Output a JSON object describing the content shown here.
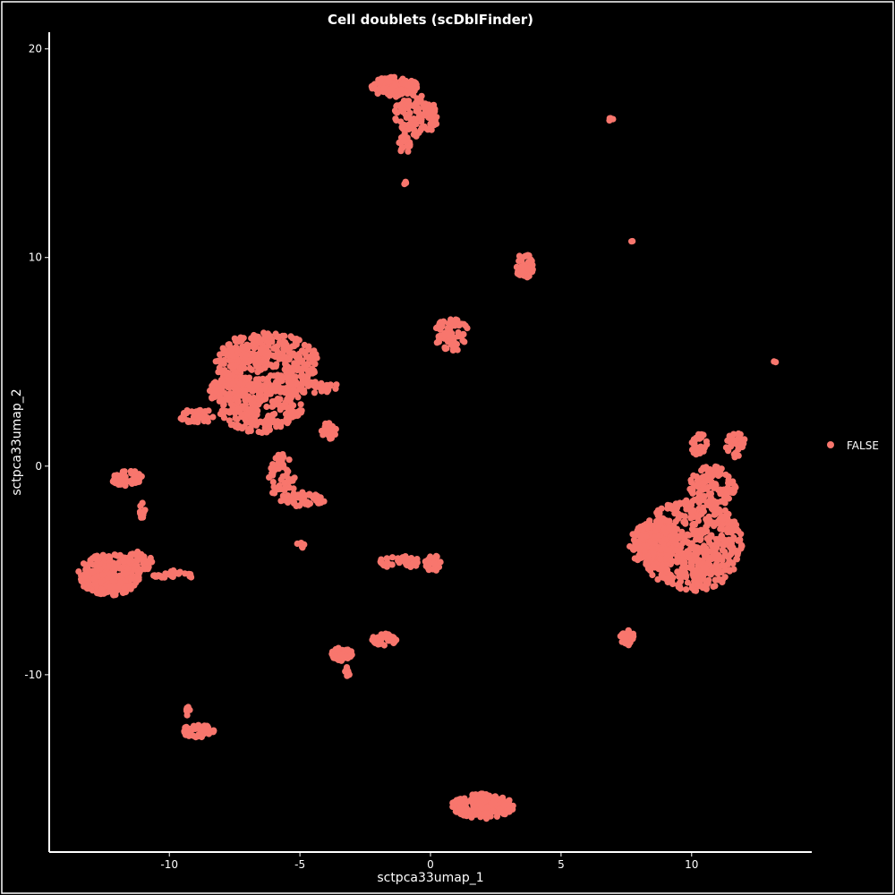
{
  "chart_data": {
    "type": "scatter",
    "title": "Cell doublets (scDblFinder)",
    "xlabel": "sctpca33umap_1",
    "ylabel": "sctpca33umap_2",
    "xlim": [
      -14.6,
      14.6
    ],
    "ylim": [
      -18.5,
      20.8
    ],
    "x_ticks": [
      -10,
      -5,
      0,
      5,
      10
    ],
    "y_ticks": [
      -10,
      0,
      10,
      20
    ],
    "grid": false,
    "legend_position": "right",
    "series": [
      {
        "name": "FALSE",
        "color": "#F8766D",
        "clusters": [
          {
            "cx": -1.4,
            "cy": 18.2,
            "rx": 0.9,
            "ry": 0.5,
            "n": 130
          },
          {
            "cx": -0.6,
            "cy": 16.8,
            "rx": 0.9,
            "ry": 1.0,
            "n": 110
          },
          {
            "cx": -1.0,
            "cy": 15.4,
            "rx": 0.25,
            "ry": 0.4,
            "n": 25
          },
          {
            "cx": -1.0,
            "cy": 13.6,
            "rx": 0.08,
            "ry": 0.08,
            "n": 3
          },
          {
            "cx": 6.9,
            "cy": 16.6,
            "rx": 0.15,
            "ry": 0.08,
            "n": 4
          },
          {
            "cx": 7.7,
            "cy": 10.8,
            "rx": 0.05,
            "ry": 0.05,
            "n": 2
          },
          {
            "cx": 3.6,
            "cy": 9.6,
            "rx": 0.35,
            "ry": 0.6,
            "n": 40
          },
          {
            "cx": 0.8,
            "cy": 6.3,
            "rx": 0.7,
            "ry": 0.8,
            "n": 70
          },
          {
            "cx": 13.2,
            "cy": 5.0,
            "rx": 0.05,
            "ry": 0.06,
            "n": 2
          },
          {
            "cx": -6.3,
            "cy": 5.0,
            "rx": 2.0,
            "ry": 1.4,
            "n": 380
          },
          {
            "cx": -6.5,
            "cy": 2.8,
            "rx": 1.6,
            "ry": 1.2,
            "n": 230
          },
          {
            "cx": -7.8,
            "cy": 3.6,
            "rx": 0.7,
            "ry": 0.6,
            "n": 60
          },
          {
            "cx": -8.9,
            "cy": 2.4,
            "rx": 0.7,
            "ry": 0.35,
            "n": 40
          },
          {
            "cx": -4.5,
            "cy": 3.8,
            "rx": 1.0,
            "ry": 0.3,
            "n": 45
          },
          {
            "cx": -3.9,
            "cy": 1.7,
            "rx": 0.3,
            "ry": 0.4,
            "n": 25
          },
          {
            "cx": -5.7,
            "cy": -0.6,
            "rx": 0.5,
            "ry": 1.2,
            "n": 60
          },
          {
            "cx": -4.8,
            "cy": -1.6,
            "rx": 0.8,
            "ry": 0.35,
            "n": 45
          },
          {
            "cx": -5.0,
            "cy": -3.8,
            "rx": 0.2,
            "ry": 0.15,
            "n": 6
          },
          {
            "cx": -11.6,
            "cy": -0.6,
            "rx": 0.6,
            "ry": 0.4,
            "n": 45
          },
          {
            "cx": -11.0,
            "cy": -2.2,
            "rx": 0.15,
            "ry": 0.5,
            "n": 12
          },
          {
            "cx": -12.3,
            "cy": -5.2,
            "rx": 1.2,
            "ry": 1.0,
            "n": 260
          },
          {
            "cx": -11.2,
            "cy": -4.6,
            "rx": 0.6,
            "ry": 0.5,
            "n": 40
          },
          {
            "cx": -9.8,
            "cy": -5.2,
            "rx": 0.9,
            "ry": 0.2,
            "n": 25
          },
          {
            "cx": -1.2,
            "cy": -4.6,
            "rx": 0.8,
            "ry": 0.3,
            "n": 35
          },
          {
            "cx": 0.1,
            "cy": -4.6,
            "rx": 0.3,
            "ry": 0.45,
            "n": 30
          },
          {
            "cx": 10.0,
            "cy": -3.8,
            "rx": 2.0,
            "ry": 2.2,
            "n": 520
          },
          {
            "cx": 8.6,
            "cy": -3.8,
            "rx": 1.0,
            "ry": 1.1,
            "n": 160
          },
          {
            "cx": 10.8,
            "cy": -1.0,
            "rx": 0.9,
            "ry": 1.0,
            "n": 110
          },
          {
            "cx": 10.3,
            "cy": 1.0,
            "rx": 0.3,
            "ry": 0.6,
            "n": 30
          },
          {
            "cx": 11.7,
            "cy": 1.0,
            "rx": 0.4,
            "ry": 0.6,
            "n": 30
          },
          {
            "cx": 7.5,
            "cy": -8.2,
            "rx": 0.3,
            "ry": 0.4,
            "n": 25
          },
          {
            "cx": -3.4,
            "cy": -9.0,
            "rx": 0.4,
            "ry": 0.35,
            "n": 45
          },
          {
            "cx": -3.2,
            "cy": -9.9,
            "rx": 0.1,
            "ry": 0.3,
            "n": 8
          },
          {
            "cx": -1.8,
            "cy": -8.3,
            "rx": 0.5,
            "ry": 0.3,
            "n": 35
          },
          {
            "cx": -8.9,
            "cy": -12.7,
            "rx": 0.6,
            "ry": 0.3,
            "n": 70
          },
          {
            "cx": -9.3,
            "cy": -11.7,
            "rx": 0.1,
            "ry": 0.3,
            "n": 8
          },
          {
            "cx": 2.0,
            "cy": -16.3,
            "rx": 1.2,
            "ry": 0.6,
            "n": 180
          }
        ]
      }
    ]
  }
}
